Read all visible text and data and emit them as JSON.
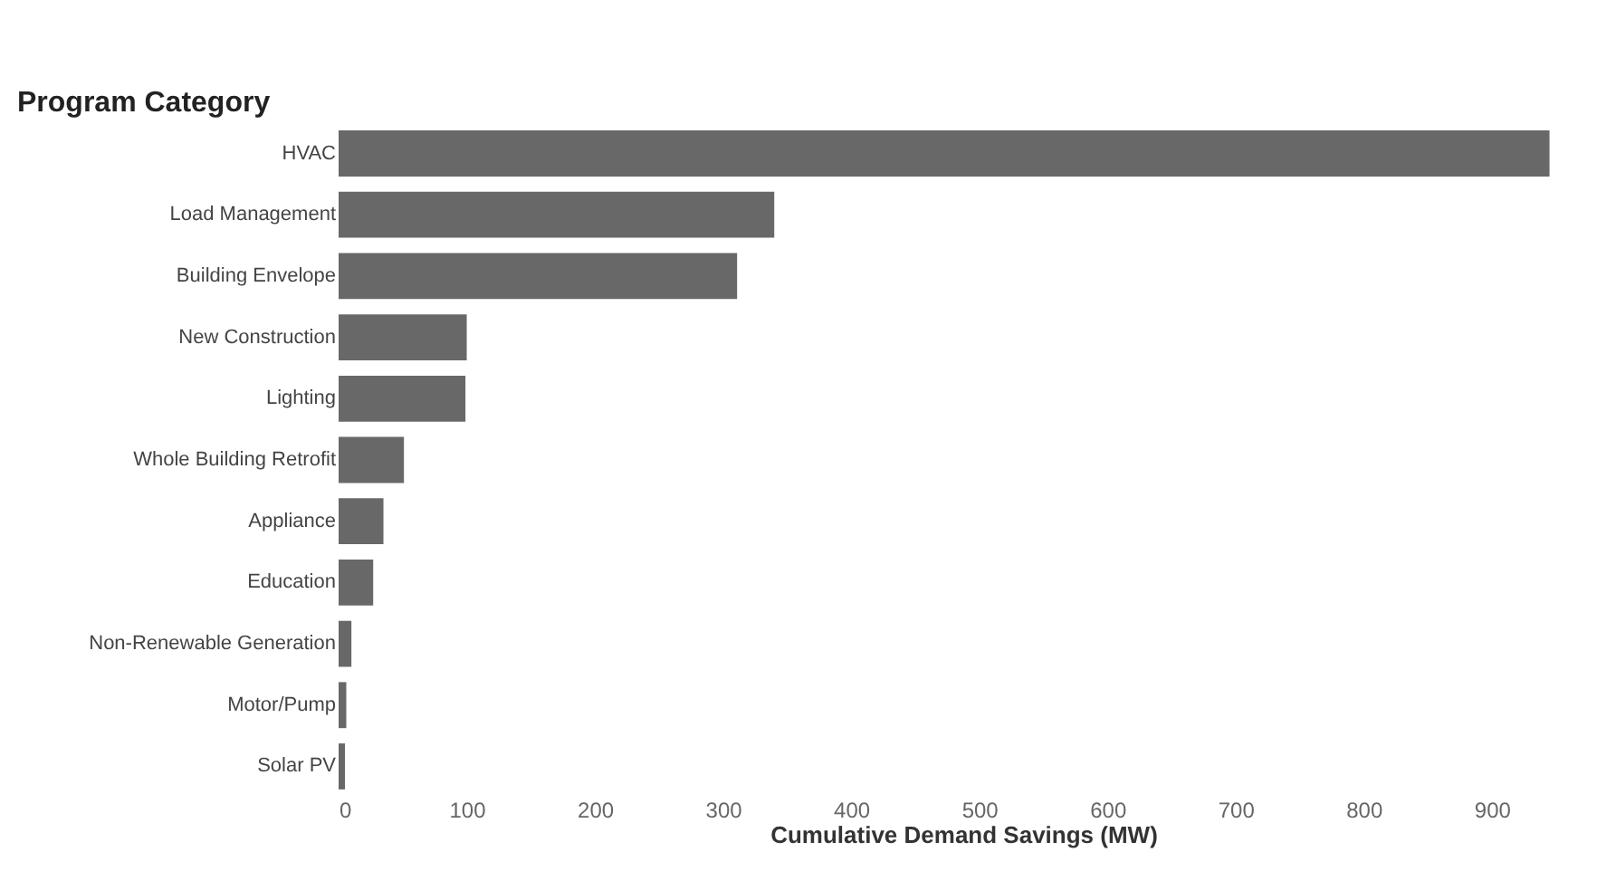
{
  "chart_data": {
    "type": "bar",
    "orientation": "horizontal",
    "ylabel": "Program Category",
    "xlabel": "Cumulative Demand Savings (MW)",
    "categories": [
      "HVAC",
      "Load Management",
      "Building Envelope",
      "New Construction",
      "Lighting",
      "Whole Building Retrofit",
      "Appliance",
      "Education",
      "Non-Renewable Generation",
      "Motor/Pump",
      "Solar PV"
    ],
    "values": [
      945,
      340,
      311,
      100,
      99,
      51,
      35,
      27,
      10,
      6,
      5
    ],
    "color": "#686868",
    "xlim": [
      0,
      975
    ],
    "xticks": [
      0,
      100,
      200,
      300,
      400,
      500,
      600,
      700,
      800,
      900
    ],
    "grid": false
  }
}
